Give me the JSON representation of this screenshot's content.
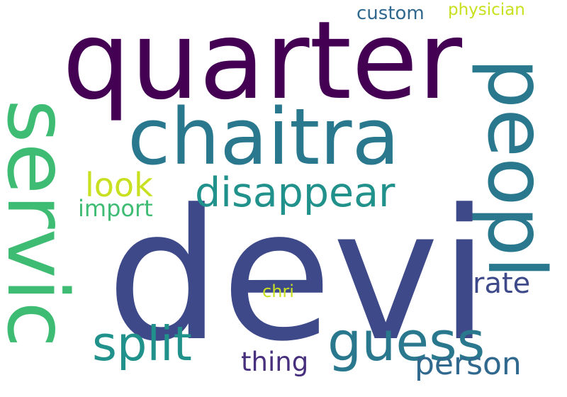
{
  "words": [
    {
      "id": "devi",
      "text": "devi",
      "color": "#3e4989"
    },
    {
      "id": "quarter",
      "text": "quarter",
      "color": "#440154"
    },
    {
      "id": "chaitra",
      "text": "chaitra",
      "color": "#2a788e"
    },
    {
      "id": "servic",
      "text": "servic",
      "color": "#3fbc73"
    },
    {
      "id": "peopl",
      "text": "peopl",
      "color": "#2a788e"
    },
    {
      "id": "disappear",
      "text": "disappear",
      "color": "#21918c"
    },
    {
      "id": "guess",
      "text": "guess",
      "color": "#2a788e"
    },
    {
      "id": "split",
      "text": "split",
      "color": "#21918c"
    },
    {
      "id": "person",
      "text": "person",
      "color": "#31688e"
    },
    {
      "id": "rate",
      "text": "rate",
      "color": "#3e4989"
    },
    {
      "id": "thing",
      "text": "thing",
      "color": "#472f7d"
    },
    {
      "id": "look",
      "text": "look",
      "color": "#c8e020"
    },
    {
      "id": "import",
      "text": "import",
      "color": "#3fbc73"
    },
    {
      "id": "custom",
      "text": "custom",
      "color": "#31688e"
    },
    {
      "id": "physician",
      "text": "physician",
      "color": "#c8e020"
    },
    {
      "id": "chri",
      "text": "chri",
      "color": "#c8e020"
    }
  ]
}
